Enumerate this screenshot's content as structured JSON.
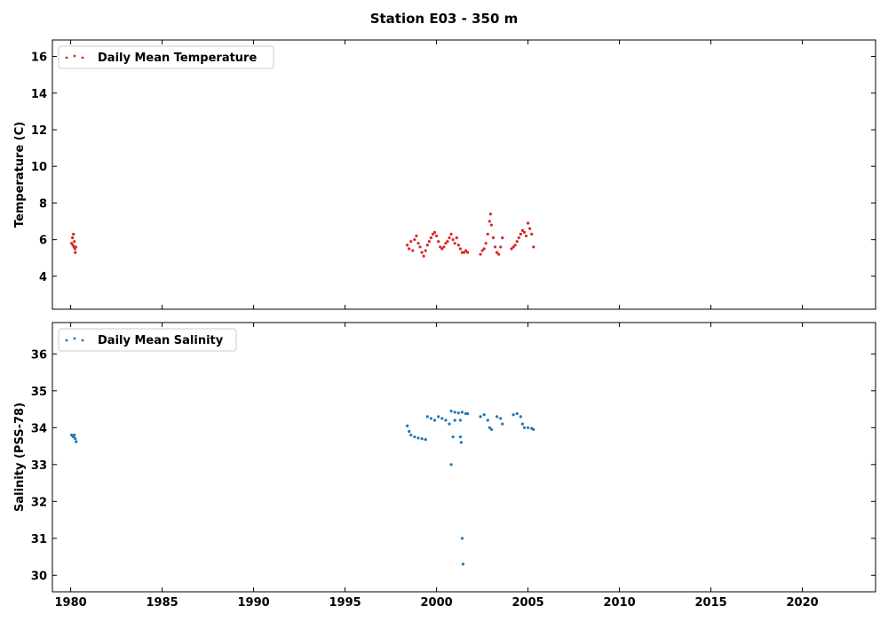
{
  "figure": {
    "title": "Station E03 - 350 m"
  },
  "chart_data": [
    {
      "type": "scatter",
      "ylabel": "Temperature (C)",
      "xlim": [
        1979.0,
        2024.0
      ],
      "ylim": [
        2.2,
        16.9
      ],
      "yticks": [
        4,
        6,
        8,
        10,
        12,
        14,
        16
      ],
      "ytick_labels": [
        "4",
        "6",
        "8",
        "10",
        "12",
        "14",
        "16"
      ],
      "legend": {
        "label": "Daily Mean Temperature",
        "loc": "upper left"
      },
      "grid": false,
      "series": [
        {
          "name": "Daily Mean Temperature",
          "color": "#d62728",
          "points": [
            [
              1980.05,
              5.8
            ],
            [
              1980.1,
              6.1
            ],
            [
              1980.12,
              5.7
            ],
            [
              1980.15,
              6.3
            ],
            [
              1980.18,
              5.6
            ],
            [
              1980.2,
              5.9
            ],
            [
              1980.23,
              5.5
            ],
            [
              1980.25,
              5.3
            ],
            [
              1980.28,
              5.6
            ],
            [
              1998.4,
              5.7
            ],
            [
              1998.5,
              5.5
            ],
            [
              1998.6,
              5.9
            ],
            [
              1998.7,
              5.4
            ],
            [
              1998.8,
              6.0
            ],
            [
              1998.9,
              6.2
            ],
            [
              1999.0,
              5.8
            ],
            [
              1999.1,
              5.6
            ],
            [
              1999.2,
              5.3
            ],
            [
              1999.3,
              5.1
            ],
            [
              1999.4,
              5.4
            ],
            [
              1999.5,
              5.7
            ],
            [
              1999.6,
              5.9
            ],
            [
              1999.7,
              6.1
            ],
            [
              1999.8,
              6.3
            ],
            [
              1999.9,
              6.4
            ],
            [
              2000.0,
              6.2
            ],
            [
              2000.1,
              5.9
            ],
            [
              2000.2,
              5.6
            ],
            [
              2000.3,
              5.5
            ],
            [
              2000.4,
              5.6
            ],
            [
              2000.5,
              5.8
            ],
            [
              2000.6,
              5.9
            ],
            [
              2000.7,
              6.1
            ],
            [
              2000.8,
              6.3
            ],
            [
              2000.9,
              6.0
            ],
            [
              2001.0,
              5.8
            ],
            [
              2001.1,
              6.1
            ],
            [
              2001.2,
              5.7
            ],
            [
              2001.3,
              5.5
            ],
            [
              2001.4,
              5.3
            ],
            [
              2001.5,
              5.3
            ],
            [
              2001.6,
              5.4
            ],
            [
              2001.7,
              5.3
            ],
            [
              2002.4,
              5.2
            ],
            [
              2002.5,
              5.4
            ],
            [
              2002.6,
              5.5
            ],
            [
              2002.7,
              5.8
            ],
            [
              2002.8,
              6.3
            ],
            [
              2002.9,
              7.0
            ],
            [
              2002.95,
              7.4
            ],
            [
              2003.0,
              6.8
            ],
            [
              2003.1,
              6.1
            ],
            [
              2003.2,
              5.6
            ],
            [
              2003.3,
              5.3
            ],
            [
              2003.4,
              5.2
            ],
            [
              2003.5,
              5.6
            ],
            [
              2003.6,
              6.1
            ],
            [
              2004.1,
              5.5
            ],
            [
              2004.2,
              5.6
            ],
            [
              2004.3,
              5.7
            ],
            [
              2004.4,
              5.9
            ],
            [
              2004.5,
              6.1
            ],
            [
              2004.6,
              6.3
            ],
            [
              2004.7,
              6.5
            ],
            [
              2004.8,
              6.4
            ],
            [
              2004.9,
              6.2
            ],
            [
              2005.0,
              6.9
            ],
            [
              2005.1,
              6.6
            ],
            [
              2005.2,
              6.3
            ],
            [
              2005.3,
              5.6
            ]
          ]
        }
      ]
    },
    {
      "type": "scatter",
      "ylabel": "Salinity (PSS-78)",
      "xlim": [
        1979.0,
        2024.0
      ],
      "ylim": [
        29.55,
        36.85
      ],
      "yticks": [
        30,
        31,
        32,
        33,
        34,
        35,
        36
      ],
      "ytick_labels": [
        "30",
        "31",
        "32",
        "33",
        "34",
        "35",
        "36"
      ],
      "xticks": [
        1980,
        1985,
        1990,
        1995,
        2000,
        2005,
        2010,
        2015,
        2020
      ],
      "xtick_labels": [
        "1980",
        "1985",
        "1990",
        "1995",
        "2000",
        "2005",
        "2010",
        "2015",
        "2020"
      ],
      "legend": {
        "label": "Daily Mean Salinity",
        "loc": "upper left"
      },
      "grid": false,
      "series": [
        {
          "name": "Daily Mean Salinity",
          "color": "#1f77b4",
          "points": [
            [
              1980.05,
              33.8
            ],
            [
              1980.1,
              33.78
            ],
            [
              1980.15,
              33.75
            ],
            [
              1980.2,
              33.8
            ],
            [
              1980.25,
              33.7
            ],
            [
              1980.3,
              33.62
            ],
            [
              1998.4,
              34.05
            ],
            [
              1998.5,
              33.9
            ],
            [
              1998.6,
              33.8
            ],
            [
              1998.8,
              33.75
            ],
            [
              1999.0,
              33.72
            ],
            [
              1999.2,
              33.7
            ],
            [
              1999.4,
              33.68
            ],
            [
              1999.5,
              34.3
            ],
            [
              1999.7,
              34.25
            ],
            [
              1999.9,
              34.2
            ],
            [
              2000.1,
              34.3
            ],
            [
              2000.3,
              34.25
            ],
            [
              2000.5,
              34.2
            ],
            [
              2000.7,
              34.1
            ],
            [
              2000.8,
              34.45
            ],
            [
              2001.0,
              34.42
            ],
            [
              2001.2,
              34.4
            ],
            [
              2001.4,
              34.42
            ],
            [
              2001.6,
              34.38
            ],
            [
              2001.7,
              34.38
            ],
            [
              2002.4,
              34.3
            ],
            [
              2002.6,
              34.35
            ],
            [
              2002.8,
              34.2
            ],
            [
              2002.9,
              34.0
            ],
            [
              2003.0,
              33.95
            ],
            [
              2003.3,
              34.3
            ],
            [
              2003.5,
              34.25
            ],
            [
              2003.6,
              34.1
            ],
            [
              2004.2,
              34.35
            ],
            [
              2004.4,
              34.38
            ],
            [
              2004.6,
              34.3
            ],
            [
              2004.7,
              34.1
            ],
            [
              2004.8,
              34.0
            ],
            [
              2005.0,
              34.0
            ],
            [
              2005.2,
              33.98
            ],
            [
              2005.3,
              33.95
            ],
            [
              2000.8,
              33.0
            ],
            [
              2000.9,
              33.75
            ],
            [
              2001.3,
              33.75
            ],
            [
              2001.35,
              33.6
            ],
            [
              2001.4,
              31.0
            ],
            [
              2001.45,
              30.3
            ],
            [
              2001.0,
              34.2
            ],
            [
              2001.3,
              34.2
            ]
          ]
        }
      ]
    }
  ]
}
